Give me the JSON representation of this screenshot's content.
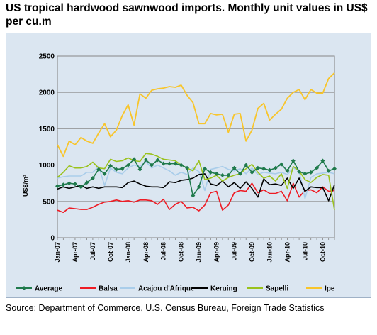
{
  "title": "US tropical hardwood sawnwood imports. Monthly unit values in US$ per cu.m",
  "source": "Source: Department of Commerce, U.S. Census Bureau, Foreign Trade Statistics",
  "chart_data": {
    "type": "line",
    "title": "US tropical hardwood sawnwood imports. Monthly unit values in US$ per cu.m",
    "ylabel": "US$/m³",
    "xlabel": "",
    "ylim": [
      0,
      2500
    ],
    "yticks": [
      0,
      500,
      1000,
      1500,
      2000,
      2500
    ],
    "grid": true,
    "legend": "bottom",
    "x": [
      "Jan-07",
      "Feb-07",
      "Mar-07",
      "Apr-07",
      "May-07",
      "Jun-07",
      "Jul-07",
      "Aug-07",
      "Sep-07",
      "Oct-07",
      "Nov-07",
      "Dec-07",
      "Jan-08",
      "Feb-08",
      "Mar-08",
      "Apr-08",
      "May-08",
      "Jun-08",
      "Jul-08",
      "Aug-08",
      "Sep-08",
      "Oct-08",
      "Nov-08",
      "Dec-08",
      "Jan-09",
      "Feb-09",
      "Mar-09",
      "Apr-09",
      "May-09",
      "Jun-09",
      "Jul-09",
      "Aug-09",
      "Sep-09",
      "Oct-09",
      "Nov-09",
      "Dec-09",
      "Jan-10",
      "Feb-10",
      "Mar-10",
      "Apr-10",
      "May-10",
      "Jun-10",
      "Jul-10",
      "Aug-10",
      "Sep-10",
      "Oct-10",
      "Nov-10",
      "Dec-10"
    ],
    "xtick_labels": [
      "Jan-07",
      "Apr-07",
      "Jul-07",
      "Oct-07",
      "Jan-08",
      "Apr-08",
      "Jul-08",
      "Oct-08",
      "Jan-09",
      "Apr-09",
      "Jul-09",
      "Oct-09",
      "Jan-10",
      "Apr-10",
      "Jul-10",
      "Oct-10"
    ],
    "series": [
      {
        "name": "Average",
        "color": "#1f7a4c",
        "marker": "diamond",
        "values": [
          710,
          730,
          750,
          740,
          700,
          760,
          820,
          940,
          880,
          990,
          940,
          950,
          1000,
          1080,
          940,
          1070,
          1000,
          1070,
          1020,
          1020,
          1020,
          1000,
          960,
          580,
          700,
          950,
          900,
          880,
          860,
          860,
          960,
          880,
          1000,
          900,
          960,
          950,
          930,
          960,
          1010,
          920,
          1060,
          910,
          880,
          900,
          960,
          1060,
          920,
          950
        ]
      },
      {
        "name": "Balsa",
        "color": "#ee1c25",
        "values": [
          380,
          350,
          410,
          400,
          390,
          390,
          420,
          460,
          490,
          500,
          520,
          500,
          510,
          490,
          520,
          520,
          510,
          460,
          530,
          390,
          460,
          500,
          410,
          420,
          370,
          450,
          620,
          640,
          380,
          450,
          620,
          650,
          640,
          750,
          620,
          660,
          610,
          610,
          640,
          510,
          750,
          560,
          650,
          660,
          620,
          700,
          640,
          650
        ]
      },
      {
        "name": "Acajou d'Afrique",
        "color": "#a9cdea",
        "values": [
          820,
          840,
          850,
          850,
          850,
          900,
          900,
          980,
          720,
          960,
          900,
          880,
          960,
          1000,
          980,
          1050,
          960,
          1000,
          960,
          920,
          860,
          900,
          870,
          960,
          910,
          650,
          940,
          960,
          980,
          940,
          920,
          950,
          880,
          960,
          870,
          900,
          890,
          880,
          900,
          870,
          960,
          920,
          540,
          830,
          880,
          890,
          900,
          880
        ]
      },
      {
        "name": "Keruing",
        "color": "#000000",
        "values": [
          670,
          700,
          680,
          700,
          720,
          680,
          700,
          680,
          700,
          700,
          700,
          690,
          760,
          780,
          740,
          710,
          700,
          700,
          690,
          770,
          760,
          790,
          800,
          820,
          870,
          880,
          740,
          720,
          780,
          700,
          760,
          680,
          770,
          680,
          560,
          810,
          730,
          740,
          720,
          820,
          680,
          820,
          640,
          700,
          690,
          690,
          510,
          730
        ]
      },
      {
        "name": "Sapelli",
        "color": "#9ac21c",
        "values": [
          830,
          900,
          990,
          960,
          960,
          980,
          1040,
          960,
          950,
          1080,
          1050,
          1060,
          1100,
          1060,
          1050,
          1160,
          1150,
          1120,
          1080,
          1070,
          1060,
          1000,
          960,
          920,
          1060,
          800,
          820,
          860,
          780,
          830,
          860,
          880,
          950,
          1010,
          900,
          820,
          850,
          780,
          880,
          680,
          980,
          920,
          800,
          760,
          830,
          870,
          860,
          380
        ]
      },
      {
        "name": "Ipe",
        "color": "#f8c52b",
        "values": [
          1280,
          1120,
          1330,
          1280,
          1380,
          1330,
          1300,
          1440,
          1570,
          1390,
          1480,
          1680,
          1830,
          1550,
          1980,
          1920,
          2030,
          2050,
          2060,
          2080,
          2070,
          2100,
          1960,
          1860,
          1570,
          1570,
          1710,
          1690,
          1700,
          1450,
          1700,
          1710,
          1330,
          1480,
          1780,
          1850,
          1620,
          1700,
          1770,
          1920,
          2000,
          2040,
          1900,
          2040,
          1990,
          1990,
          2190,
          2270
        ]
      }
    ]
  }
}
